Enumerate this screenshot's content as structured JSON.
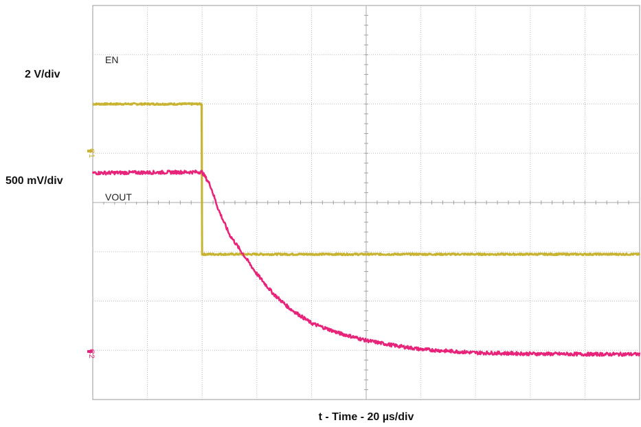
{
  "chart_data": {
    "type": "line",
    "title": "",
    "xlabel": "t - Time - 20 µs/div",
    "x_divisions": 10,
    "y_divisions": 8,
    "channels": [
      {
        "channel_marker": "C1",
        "name": "EN",
        "scale_label": "2 V/div",
        "color": "#C8B432",
        "unit": "V",
        "points": [
          [
            0,
            6.0
          ],
          [
            2.0,
            6.0
          ],
          [
            2.0,
            2.95
          ],
          [
            10,
            2.95
          ]
        ]
      },
      {
        "channel_marker": "C2",
        "name": "VOUT",
        "scale_label": "500 mV/div",
        "color": "#E8237A",
        "unit": "V",
        "points": [
          [
            0,
            4.6
          ],
          [
            2.0,
            4.62
          ],
          [
            2.15,
            4.35
          ],
          [
            2.3,
            3.85
          ],
          [
            2.5,
            3.35
          ],
          [
            2.75,
            2.95
          ],
          [
            3.0,
            2.55
          ],
          [
            3.3,
            2.15
          ],
          [
            3.6,
            1.85
          ],
          [
            4.0,
            1.55
          ],
          [
            4.5,
            1.35
          ],
          [
            5.0,
            1.2
          ],
          [
            5.5,
            1.1
          ],
          [
            6.0,
            1.02
          ],
          [
            7.0,
            0.95
          ],
          [
            8.0,
            0.93
          ],
          [
            9.0,
            0.92
          ],
          [
            10,
            0.92
          ]
        ]
      }
    ]
  }
}
